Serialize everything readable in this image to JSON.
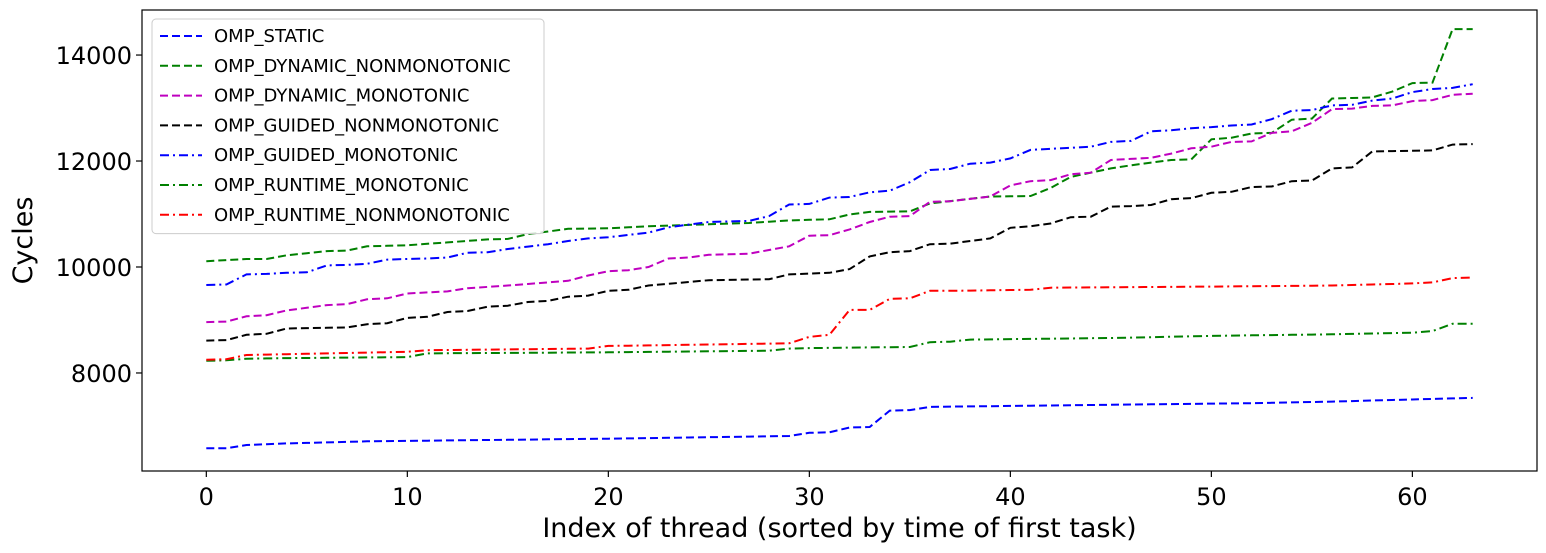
{
  "chart_data": {
    "type": "line",
    "title": "",
    "xlabel": "Index of thread (sorted by time of first task)",
    "ylabel": "Cycles",
    "xlim": [
      -3.2,
      66.2
    ],
    "ylim": [
      6150,
      14850
    ],
    "xticks": [
      0,
      10,
      20,
      30,
      40,
      50,
      60
    ],
    "yticks": [
      8000,
      10000,
      12000,
      14000
    ],
    "xtick_labels": [
      "0",
      "10",
      "20",
      "30",
      "40",
      "50",
      "60"
    ],
    "ytick_labels": [
      "8000",
      "10000",
      "12000",
      "14000"
    ],
    "grid": false,
    "legend_position": "top-left",
    "series": [
      {
        "name": "OMP_STATIC",
        "color": "#0000ff",
        "dash": "dashed",
        "anchors": [
          [
            0,
            6580
          ],
          [
            1,
            6580
          ],
          [
            2,
            6640
          ],
          [
            4,
            6670
          ],
          [
            8,
            6710
          ],
          [
            20,
            6760
          ],
          [
            29,
            6810
          ],
          [
            30,
            6870
          ],
          [
            31,
            6880
          ],
          [
            32,
            6970
          ],
          [
            33,
            6980
          ],
          [
            34,
            7290
          ],
          [
            35,
            7300
          ],
          [
            36,
            7360
          ],
          [
            45,
            7400
          ],
          [
            52,
            7430
          ],
          [
            56,
            7460
          ],
          [
            60,
            7500
          ],
          [
            63,
            7530
          ]
        ]
      },
      {
        "name": "OMP_DYNAMIC_NONMONOTONIC",
        "color": "#008000",
        "dash": "dashed",
        "anchors": [
          [
            0,
            10110
          ],
          [
            2,
            10150
          ],
          [
            3,
            10150
          ],
          [
            4,
            10220
          ],
          [
            6,
            10300
          ],
          [
            7,
            10310
          ],
          [
            8,
            10390
          ],
          [
            10,
            10410
          ],
          [
            14,
            10520
          ],
          [
            15,
            10530
          ],
          [
            16,
            10620
          ],
          [
            18,
            10720
          ],
          [
            20,
            10730
          ],
          [
            22,
            10770
          ],
          [
            27,
            10830
          ],
          [
            29,
            10880
          ],
          [
            31,
            10900
          ],
          [
            32,
            10990
          ],
          [
            33,
            11040
          ],
          [
            35,
            11050
          ],
          [
            36,
            11200
          ],
          [
            39,
            11330
          ],
          [
            41,
            11340
          ],
          [
            42,
            11490
          ],
          [
            43,
            11700
          ],
          [
            45,
            11860
          ],
          [
            46,
            11920
          ],
          [
            48,
            12020
          ],
          [
            49,
            12030
          ],
          [
            50,
            12410
          ],
          [
            51,
            12440
          ],
          [
            52,
            12520
          ],
          [
            53,
            12530
          ],
          [
            54,
            12780
          ],
          [
            55,
            12800
          ],
          [
            56,
            13180
          ],
          [
            58,
            13200
          ],
          [
            59,
            13310
          ],
          [
            60,
            13470
          ],
          [
            61,
            13480
          ],
          [
            62,
            14490
          ],
          [
            63,
            14490
          ]
        ]
      },
      {
        "name": "OMP_DYNAMIC_MONOTONIC",
        "color": "#bf00bf",
        "dash": "dashed",
        "anchors": [
          [
            0,
            8960
          ],
          [
            1,
            8970
          ],
          [
            2,
            9070
          ],
          [
            3,
            9090
          ],
          [
            4,
            9180
          ],
          [
            6,
            9280
          ],
          [
            7,
            9300
          ],
          [
            8,
            9390
          ],
          [
            9,
            9410
          ],
          [
            10,
            9500
          ],
          [
            12,
            9540
          ],
          [
            13,
            9600
          ],
          [
            15,
            9650
          ],
          [
            18,
            9740
          ],
          [
            19,
            9840
          ],
          [
            20,
            9920
          ],
          [
            21,
            9940
          ],
          [
            22,
            10000
          ],
          [
            23,
            10160
          ],
          [
            24,
            10180
          ],
          [
            25,
            10230
          ],
          [
            27,
            10250
          ],
          [
            29,
            10390
          ],
          [
            30,
            10590
          ],
          [
            31,
            10600
          ],
          [
            32,
            10710
          ],
          [
            33,
            10850
          ],
          [
            34,
            10950
          ],
          [
            35,
            10960
          ],
          [
            36,
            11230
          ],
          [
            37,
            11240
          ],
          [
            39,
            11330
          ],
          [
            40,
            11540
          ],
          [
            41,
            11620
          ],
          [
            42,
            11640
          ],
          [
            43,
            11750
          ],
          [
            44,
            11780
          ],
          [
            45,
            12020
          ],
          [
            47,
            12060
          ],
          [
            48,
            12140
          ],
          [
            49,
            12240
          ],
          [
            50,
            12270
          ],
          [
            51,
            12360
          ],
          [
            52,
            12370
          ],
          [
            53,
            12530
          ],
          [
            54,
            12560
          ],
          [
            55,
            12720
          ],
          [
            56,
            12980
          ],
          [
            57,
            12990
          ],
          [
            58,
            13040
          ],
          [
            59,
            13050
          ],
          [
            60,
            13130
          ],
          [
            61,
            13150
          ],
          [
            62,
            13250
          ],
          [
            63,
            13270
          ]
        ]
      },
      {
        "name": "OMP_GUIDED_NONMONOTONIC",
        "color": "#000000",
        "dash": "dashed",
        "anchors": [
          [
            0,
            8610
          ],
          [
            1,
            8620
          ],
          [
            2,
            8720
          ],
          [
            3,
            8740
          ],
          [
            4,
            8840
          ],
          [
            7,
            8860
          ],
          [
            8,
            8920
          ],
          [
            9,
            8940
          ],
          [
            10,
            9040
          ],
          [
            11,
            9060
          ],
          [
            12,
            9150
          ],
          [
            13,
            9170
          ],
          [
            14,
            9250
          ],
          [
            15,
            9270
          ],
          [
            16,
            9340
          ],
          [
            17,
            9360
          ],
          [
            18,
            9440
          ],
          [
            19,
            9460
          ],
          [
            20,
            9550
          ],
          [
            21,
            9570
          ],
          [
            22,
            9650
          ],
          [
            25,
            9750
          ],
          [
            28,
            9770
          ],
          [
            29,
            9860
          ],
          [
            31,
            9890
          ],
          [
            32,
            9960
          ],
          [
            33,
            10200
          ],
          [
            34,
            10280
          ],
          [
            35,
            10300
          ],
          [
            36,
            10430
          ],
          [
            37,
            10440
          ],
          [
            39,
            10540
          ],
          [
            40,
            10740
          ],
          [
            41,
            10770
          ],
          [
            42,
            10820
          ],
          [
            43,
            10940
          ],
          [
            44,
            10950
          ],
          [
            45,
            11140
          ],
          [
            46,
            11150
          ],
          [
            47,
            11170
          ],
          [
            48,
            11280
          ],
          [
            49,
            11300
          ],
          [
            50,
            11400
          ],
          [
            51,
            11420
          ],
          [
            52,
            11510
          ],
          [
            53,
            11520
          ],
          [
            54,
            11620
          ],
          [
            55,
            11630
          ],
          [
            56,
            11860
          ],
          [
            57,
            11880
          ],
          [
            58,
            12180
          ],
          [
            61,
            12200
          ],
          [
            62,
            12310
          ],
          [
            63,
            12320
          ]
        ]
      },
      {
        "name": "OMP_GUIDED_MONOTONIC",
        "color": "#0000ff",
        "dash": "dashdot",
        "anchors": [
          [
            0,
            9660
          ],
          [
            1,
            9670
          ],
          [
            2,
            9860
          ],
          [
            3,
            9870
          ],
          [
            4,
            9890
          ],
          [
            5,
            9900
          ],
          [
            6,
            10030
          ],
          [
            7,
            10040
          ],
          [
            8,
            10060
          ],
          [
            9,
            10140
          ],
          [
            11,
            10160
          ],
          [
            12,
            10180
          ],
          [
            13,
            10270
          ],
          [
            14,
            10280
          ],
          [
            15,
            10340
          ],
          [
            17,
            10430
          ],
          [
            18,
            10490
          ],
          [
            19,
            10540
          ],
          [
            20,
            10560
          ],
          [
            22,
            10650
          ],
          [
            23,
            10750
          ],
          [
            25,
            10850
          ],
          [
            27,
            10870
          ],
          [
            28,
            10960
          ],
          [
            29,
            11180
          ],
          [
            30,
            11190
          ],
          [
            31,
            11310
          ],
          [
            32,
            11320
          ],
          [
            33,
            11410
          ],
          [
            34,
            11440
          ],
          [
            35,
            11600
          ],
          [
            36,
            11830
          ],
          [
            37,
            11850
          ],
          [
            38,
            11950
          ],
          [
            39,
            11970
          ],
          [
            40,
            12050
          ],
          [
            41,
            12210
          ],
          [
            42,
            12230
          ],
          [
            43,
            12250
          ],
          [
            44,
            12270
          ],
          [
            45,
            12360
          ],
          [
            46,
            12380
          ],
          [
            47,
            12560
          ],
          [
            48,
            12580
          ],
          [
            49,
            12620
          ],
          [
            50,
            12640
          ],
          [
            51,
            12670
          ],
          [
            52,
            12690
          ],
          [
            53,
            12790
          ],
          [
            54,
            12950
          ],
          [
            55,
            12960
          ],
          [
            56,
            13050
          ],
          [
            57,
            13060
          ],
          [
            58,
            13140
          ],
          [
            59,
            13180
          ],
          [
            60,
            13300
          ],
          [
            61,
            13360
          ],
          [
            62,
            13380
          ],
          [
            63,
            13450
          ]
        ]
      },
      {
        "name": "OMP_RUNTIME_MONOTONIC",
        "color": "#008000",
        "dash": "dashdot",
        "anchors": [
          [
            0,
            8230
          ],
          [
            1,
            8240
          ],
          [
            2,
            8270
          ],
          [
            4,
            8280
          ],
          [
            10,
            8300
          ],
          [
            11,
            8370
          ],
          [
            20,
            8390
          ],
          [
            28,
            8420
          ],
          [
            29,
            8460
          ],
          [
            30,
            8470
          ],
          [
            35,
            8490
          ],
          [
            36,
            8580
          ],
          [
            37,
            8590
          ],
          [
            38,
            8630
          ],
          [
            45,
            8660
          ],
          [
            50,
            8700
          ],
          [
            56,
            8730
          ],
          [
            60,
            8760
          ],
          [
            61,
            8790
          ],
          [
            62,
            8930
          ],
          [
            63,
            8930
          ]
        ]
      },
      {
        "name": "OMP_RUNTIME_NONMONOTONIC",
        "color": "#ff0000",
        "dash": "dashdot",
        "anchors": [
          [
            0,
            8250
          ],
          [
            1,
            8260
          ],
          [
            2,
            8340
          ],
          [
            10,
            8400
          ],
          [
            11,
            8430
          ],
          [
            19,
            8460
          ],
          [
            20,
            8510
          ],
          [
            29,
            8560
          ],
          [
            30,
            8680
          ],
          [
            31,
            8720
          ],
          [
            32,
            9190
          ],
          [
            33,
            9190
          ],
          [
            34,
            9400
          ],
          [
            35,
            9410
          ],
          [
            36,
            9550
          ],
          [
            37,
            9550
          ],
          [
            41,
            9570
          ],
          [
            42,
            9610
          ],
          [
            50,
            9630
          ],
          [
            56,
            9650
          ],
          [
            60,
            9690
          ],
          [
            61,
            9710
          ],
          [
            62,
            9790
          ],
          [
            63,
            9800
          ]
        ]
      }
    ]
  }
}
